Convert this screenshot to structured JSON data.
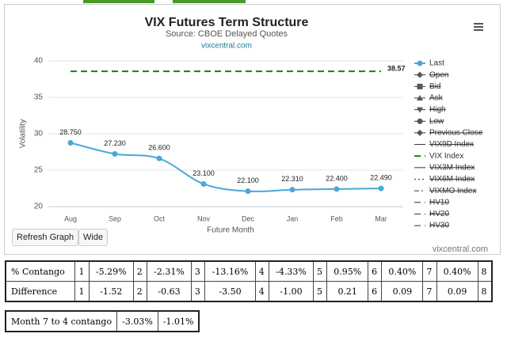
{
  "chart_data": {
    "type": "line",
    "title": "VIX Futures Term Structure",
    "subtitle": "Source: CBOE Delayed Quotes",
    "link": "vixcentral.com",
    "credit": "vixcentral.com",
    "x_label": "Future Month",
    "y_label": "Volatility",
    "categories": [
      "Aug",
      "Sep",
      "Oct",
      "Nov",
      "Dec",
      "Jan",
      "Feb",
      "Mar"
    ],
    "ylim": [
      20,
      40
    ],
    "yticks": [
      20,
      25,
      30,
      35,
      40
    ],
    "grid": true,
    "series": [
      {
        "name": "Last",
        "color": "#4aa8d8",
        "marker": "circle",
        "dash": "solid",
        "visible": true,
        "values": [
          28.75,
          27.23,
          26.6,
          23.1,
          22.1,
          22.31,
          22.4,
          22.49
        ],
        "value_labels": [
          "28.750",
          "27.230",
          "26.600",
          "23.100",
          "22.100",
          "22.310",
          "22.400",
          "22.490"
        ]
      },
      {
        "name": "Open",
        "color": "#555555",
        "marker": "diamond",
        "dash": "solid",
        "visible": false
      },
      {
        "name": "Bid",
        "color": "#555555",
        "marker": "square",
        "dash": "solid",
        "visible": false
      },
      {
        "name": "Ask",
        "color": "#555555",
        "marker": "triangle",
        "dash": "solid",
        "visible": false
      },
      {
        "name": "High",
        "color": "#555555",
        "marker": "triangle-down",
        "dash": "solid",
        "visible": false
      },
      {
        "name": "Low",
        "color": "#555555",
        "marker": "circle",
        "dash": "solid",
        "visible": false
      },
      {
        "name": "Previous Close",
        "color": "#555555",
        "marker": "diamond",
        "dash": "solid",
        "visible": false
      },
      {
        "name": "VIX9D Index",
        "color": "#555555",
        "marker": "none",
        "dash": "solid",
        "visible": false
      },
      {
        "name": "VIX Index",
        "color": "#1b7d1b",
        "marker": "none",
        "dash": "dash",
        "visible": true,
        "data_labels": "last",
        "values": [
          38.57,
          38.57,
          38.57,
          38.57,
          38.57,
          38.57,
          38.57,
          38.57
        ]
      },
      {
        "name": "VIX3M Index",
        "color": "#555555",
        "marker": "none",
        "dash": "solid",
        "visible": false
      },
      {
        "name": "VIX6M Index",
        "color": "#555555",
        "marker": "none",
        "dash": "dot",
        "visible": false
      },
      {
        "name": "VIXMO Index",
        "color": "#555555",
        "marker": "none",
        "dash": "dashdot",
        "visible": false
      },
      {
        "name": "HV10",
        "color": "#555555",
        "marker": "none",
        "dash": "dash",
        "visible": false
      },
      {
        "name": "HV20",
        "color": "#555555",
        "marker": "none",
        "dash": "dash",
        "visible": false
      },
      {
        "name": "HV30",
        "color": "#555555",
        "marker": "none",
        "dash": "dash",
        "visible": false
      }
    ]
  },
  "buttons": [
    "Refresh Graph",
    "Wide"
  ],
  "contango_table": {
    "rows": [
      [
        "% Contango",
        "1",
        "-5.29%",
        "2",
        "-2.31%",
        "3",
        "-13.16%",
        "4",
        "-4.33%",
        "5",
        "0.95%",
        "6",
        "0.40%",
        "7",
        "0.40%",
        "8"
      ],
      [
        "Difference",
        "1",
        "-1.52",
        "2",
        "-0.63",
        "3",
        "-3.50",
        "4",
        "-1.00",
        "5",
        "0.21",
        "6",
        "0.09",
        "7",
        "0.09",
        "8"
      ]
    ]
  },
  "summary_table": {
    "rows": [
      [
        "Month 7 to 4 contango",
        "-3.03%",
        "-1.01%"
      ]
    ]
  }
}
